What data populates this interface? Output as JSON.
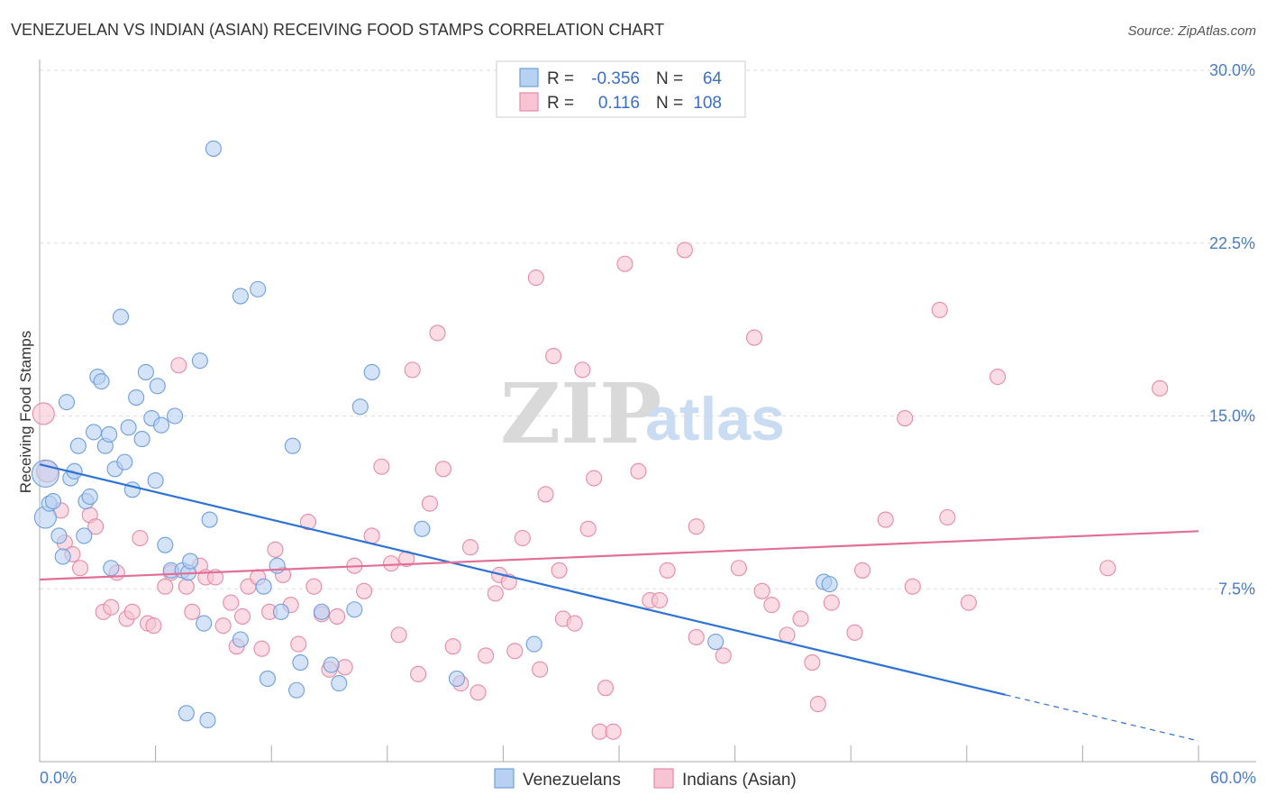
{
  "title": "VENEZUELAN VS INDIAN (ASIAN) RECEIVING FOOD STAMPS CORRELATION CHART",
  "source": "Source: ZipAtlas.com",
  "watermark": {
    "zip": "ZIP",
    "atlas": "atlas"
  },
  "colors": {
    "venezuelans_fill": "#b7d1f2",
    "venezuelans_stroke": "#6f9fdc",
    "venezuelans_line": "#2f72d6",
    "indians_fill": "#f8c4d4",
    "indians_stroke": "#e58aa8",
    "indians_line": "#e07098",
    "tick_text": "#4a7cc9",
    "grid": "#dddddd"
  },
  "legend": {
    "r_label": "R =",
    "n_label": "N =",
    "rows": [
      {
        "r": "-0.356",
        "n": "64"
      },
      {
        "r": "0.116",
        "n": "108"
      }
    ]
  },
  "chart_data": {
    "type": "scatter",
    "title": "VENEZUELAN VS INDIAN (ASIAN) RECEIVING FOOD STAMPS CORRELATION CHART",
    "xlabel": "",
    "ylabel": "Receiving Food Stamps",
    "xlim": [
      0,
      60
    ],
    "ylim": [
      0,
      30
    ],
    "x_tick_labels": [
      "0.0%",
      "60.0%"
    ],
    "y_ticks": [
      7.5,
      15.0,
      22.5,
      30.0
    ],
    "y_tick_labels": [
      "7.5%",
      "15.0%",
      "22.5%",
      "30.0%"
    ],
    "grid": true,
    "legend_position": "top-center",
    "series": [
      {
        "name": "Venezuelans",
        "trend": {
          "x": [
            0,
            50
          ],
          "y": [
            12.9,
            2.9
          ],
          "dashed_to": [
            60,
            0.9
          ]
        },
        "points": [
          [
            0.3,
            12.5,
            3
          ],
          [
            0.3,
            10.6,
            2
          ],
          [
            0.5,
            11.2,
            1
          ],
          [
            0.7,
            11.3,
            1
          ],
          [
            1.0,
            9.8,
            1
          ],
          [
            1.2,
            8.9,
            1
          ],
          [
            1.4,
            15.6,
            1
          ],
          [
            1.6,
            12.3,
            1
          ],
          [
            1.8,
            12.6,
            1
          ],
          [
            2.0,
            13.7,
            1
          ],
          [
            2.3,
            9.8,
            1
          ],
          [
            2.4,
            11.3,
            1
          ],
          [
            2.6,
            11.5,
            1
          ],
          [
            2.8,
            14.3,
            1
          ],
          [
            3.0,
            16.7,
            1
          ],
          [
            3.2,
            16.5,
            1
          ],
          [
            3.4,
            13.7,
            1
          ],
          [
            3.6,
            14.2,
            1
          ],
          [
            3.7,
            8.4,
            1
          ],
          [
            3.9,
            12.7,
            1
          ],
          [
            4.2,
            19.3,
            1
          ],
          [
            4.4,
            13.0,
            1
          ],
          [
            4.6,
            14.5,
            1
          ],
          [
            4.8,
            11.8,
            1
          ],
          [
            5.0,
            15.8,
            1
          ],
          [
            5.3,
            14.0,
            1
          ],
          [
            5.5,
            16.9,
            1
          ],
          [
            5.8,
            14.9,
            1
          ],
          [
            6.0,
            12.2,
            1
          ],
          [
            6.1,
            16.3,
            1
          ],
          [
            6.3,
            14.6,
            1
          ],
          [
            6.5,
            9.4,
            1
          ],
          [
            6.8,
            8.3,
            1
          ],
          [
            7.0,
            15.0,
            1
          ],
          [
            7.4,
            8.3,
            1
          ],
          [
            7.6,
            2.1,
            1
          ],
          [
            7.7,
            8.2,
            1
          ],
          [
            7.8,
            8.7,
            1
          ],
          [
            8.3,
            17.4,
            1
          ],
          [
            8.5,
            6.0,
            1
          ],
          [
            8.7,
            1.8,
            1
          ],
          [
            8.8,
            10.5,
            1
          ],
          [
            9.0,
            26.6,
            1
          ],
          [
            10.4,
            5.3,
            1
          ],
          [
            10.4,
            20.2,
            1
          ],
          [
            11.3,
            20.5,
            1
          ],
          [
            11.6,
            7.6,
            1
          ],
          [
            11.8,
            3.6,
            1
          ],
          [
            12.3,
            8.5,
            1
          ],
          [
            12.5,
            6.5,
            1
          ],
          [
            13.1,
            13.7,
            1
          ],
          [
            13.5,
            4.3,
            1
          ],
          [
            13.3,
            3.1,
            1
          ],
          [
            14.6,
            6.5,
            1
          ],
          [
            15.1,
            4.2,
            1
          ],
          [
            15.5,
            3.4,
            1
          ],
          [
            16.3,
            6.6,
            1
          ],
          [
            16.6,
            15.4,
            1
          ],
          [
            17.2,
            16.9,
            1
          ],
          [
            19.8,
            10.1,
            1
          ],
          [
            21.6,
            3.6,
            1
          ],
          [
            25.6,
            5.1,
            1
          ],
          [
            35.0,
            5.2,
            1
          ],
          [
            40.6,
            7.8,
            1
          ],
          [
            40.9,
            7.7,
            1
          ]
        ]
      },
      {
        "name": "Indians (Asian)",
        "trend": {
          "x": [
            0,
            60
          ],
          "y": [
            7.9,
            10.0
          ]
        },
        "points": [
          [
            0.2,
            15.1,
            2
          ],
          [
            0.4,
            12.6,
            2
          ],
          [
            1.1,
            10.9,
            1
          ],
          [
            1.3,
            9.5,
            1
          ],
          [
            1.7,
            9.0,
            1
          ],
          [
            2.1,
            8.4,
            1
          ],
          [
            2.6,
            10.7,
            1
          ],
          [
            2.9,
            10.2,
            1
          ],
          [
            3.3,
            6.5,
            1
          ],
          [
            3.7,
            6.7,
            1
          ],
          [
            4.0,
            8.2,
            1
          ],
          [
            4.5,
            6.2,
            1
          ],
          [
            4.8,
            6.5,
            1
          ],
          [
            5.2,
            9.7,
            1
          ],
          [
            5.6,
            6.0,
            1
          ],
          [
            5.9,
            5.9,
            1
          ],
          [
            6.5,
            7.6,
            1
          ],
          [
            6.8,
            8.2,
            1
          ],
          [
            7.2,
            17.2,
            1
          ],
          [
            7.6,
            7.6,
            1
          ],
          [
            7.9,
            6.5,
            1
          ],
          [
            8.3,
            8.5,
            1
          ],
          [
            8.6,
            8.0,
            1
          ],
          [
            9.1,
            8.0,
            1
          ],
          [
            9.5,
            5.9,
            1
          ],
          [
            9.9,
            6.9,
            1
          ],
          [
            10.2,
            5.0,
            1
          ],
          [
            10.5,
            6.3,
            1
          ],
          [
            10.8,
            7.6,
            1
          ],
          [
            11.3,
            8.0,
            1
          ],
          [
            11.5,
            4.9,
            1
          ],
          [
            11.9,
            6.5,
            1
          ],
          [
            12.2,
            9.2,
            1
          ],
          [
            12.6,
            8.1,
            1
          ],
          [
            13.0,
            6.8,
            1
          ],
          [
            13.4,
            5.1,
            1
          ],
          [
            13.9,
            10.4,
            1
          ],
          [
            14.2,
            7.6,
            1
          ],
          [
            14.6,
            6.4,
            1
          ],
          [
            15.0,
            4.0,
            1
          ],
          [
            15.4,
            6.3,
            1
          ],
          [
            15.8,
            4.1,
            1
          ],
          [
            16.3,
            8.5,
            1
          ],
          [
            16.8,
            7.4,
            1
          ],
          [
            17.2,
            9.8,
            1
          ],
          [
            17.7,
            12.8,
            1
          ],
          [
            18.2,
            8.6,
            1
          ],
          [
            18.6,
            5.5,
            1
          ],
          [
            19.0,
            8.8,
            1
          ],
          [
            19.3,
            17.0,
            1
          ],
          [
            19.6,
            3.8,
            1
          ],
          [
            20.2,
            11.2,
            1
          ],
          [
            20.6,
            18.6,
            1
          ],
          [
            20.9,
            12.7,
            1
          ],
          [
            21.4,
            5.0,
            1
          ],
          [
            21.8,
            3.4,
            1
          ],
          [
            22.3,
            9.3,
            1
          ],
          [
            22.7,
            3.0,
            1
          ],
          [
            23.1,
            4.6,
            1
          ],
          [
            23.6,
            7.3,
            1
          ],
          [
            23.8,
            8.1,
            1
          ],
          [
            24.3,
            7.8,
            1
          ],
          [
            24.6,
            4.8,
            1
          ],
          [
            25.0,
            9.7,
            1
          ],
          [
            25.7,
            21.0,
            1
          ],
          [
            25.9,
            4.0,
            1
          ],
          [
            26.2,
            11.6,
            1
          ],
          [
            26.6,
            17.6,
            1
          ],
          [
            26.9,
            8.3,
            1
          ],
          [
            27.1,
            6.2,
            1
          ],
          [
            27.7,
            6.0,
            1
          ],
          [
            28.1,
            17.0,
            1
          ],
          [
            28.4,
            10.1,
            1
          ],
          [
            28.7,
            12.3,
            1
          ],
          [
            29.0,
            1.3,
            1
          ],
          [
            29.3,
            3.2,
            1
          ],
          [
            29.7,
            1.3,
            1
          ],
          [
            30.3,
            21.6,
            1
          ],
          [
            31.0,
            12.6,
            1
          ],
          [
            31.6,
            7.0,
            1
          ],
          [
            32.1,
            7.0,
            1
          ],
          [
            32.5,
            8.3,
            1
          ],
          [
            33.4,
            22.2,
            1
          ],
          [
            34.0,
            10.2,
            1
          ],
          [
            35.4,
            4.6,
            1
          ],
          [
            36.2,
            8.4,
            1
          ],
          [
            37.0,
            18.4,
            1
          ],
          [
            37.4,
            7.4,
            1
          ],
          [
            37.9,
            6.8,
            1
          ],
          [
            38.7,
            5.5,
            1
          ],
          [
            39.4,
            6.2,
            1
          ],
          [
            40.0,
            4.3,
            1
          ],
          [
            40.3,
            2.5,
            1
          ],
          [
            41.0,
            6.9,
            1
          ],
          [
            42.6,
            8.3,
            1
          ],
          [
            43.8,
            10.5,
            1
          ],
          [
            44.8,
            14.9,
            1
          ],
          [
            45.2,
            7.6,
            1
          ],
          [
            47.0,
            10.6,
            1
          ],
          [
            46.6,
            19.6,
            1
          ],
          [
            48.1,
            6.9,
            1
          ],
          [
            49.6,
            16.7,
            1
          ],
          [
            55.3,
            8.4,
            1
          ],
          [
            58.0,
            16.2,
            1
          ],
          [
            34.0,
            5.4,
            1
          ],
          [
            42.2,
            5.6,
            1
          ]
        ]
      }
    ]
  }
}
